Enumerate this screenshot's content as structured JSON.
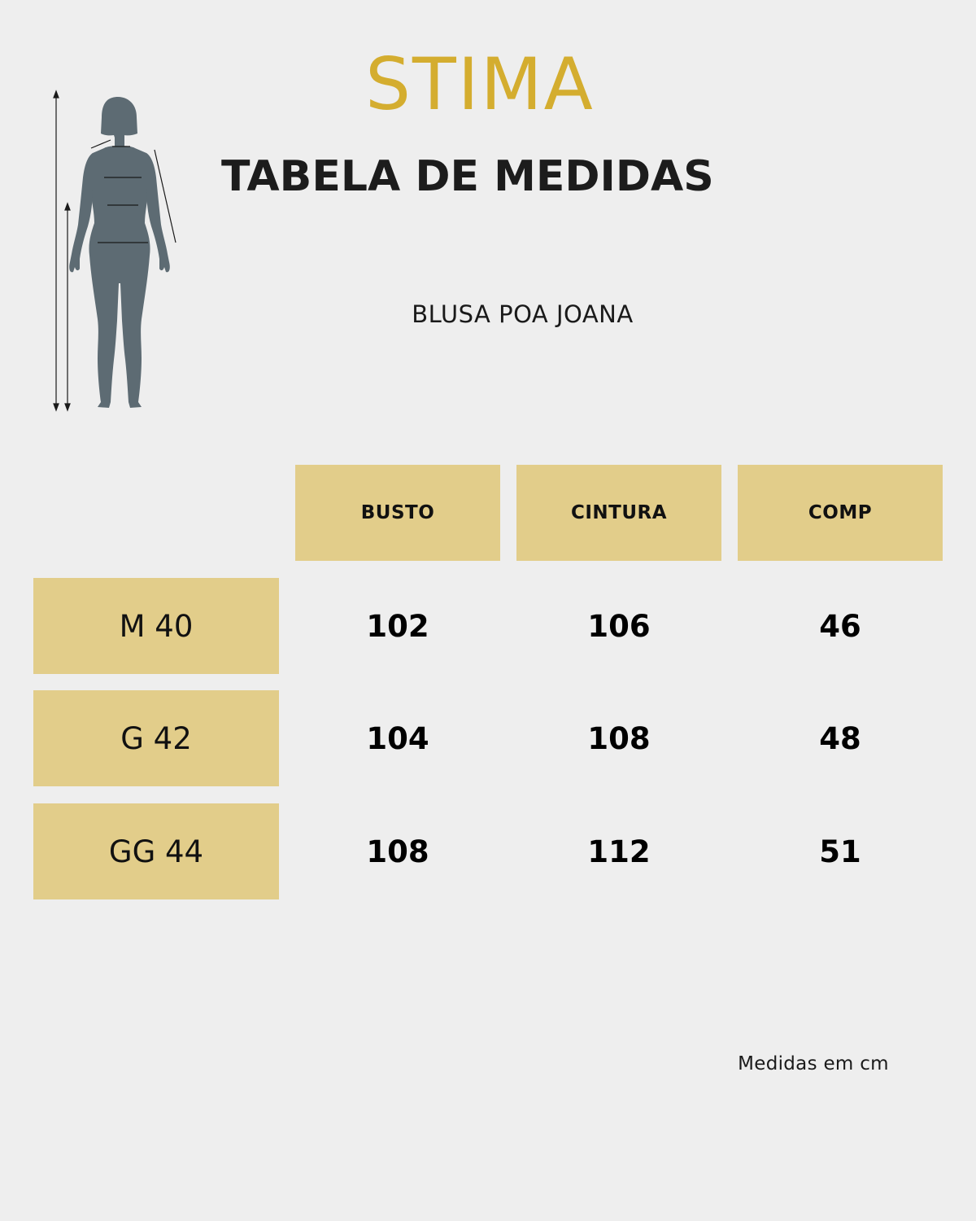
{
  "brand": {
    "logo_text": "STIMA",
    "logo_color": "#d4ad2f"
  },
  "title": "TABELA DE MEDIDAS",
  "product_name": "BLUSA POA JOANA",
  "colors": {
    "background": "#eeeeee",
    "cell_fill": "#e2cd8a",
    "figure": "#5d6b73"
  },
  "table": {
    "headers": [
      "BUSTO",
      "CINTURA",
      "COMP"
    ],
    "rows": [
      {
        "size": "M 40",
        "values": [
          "102",
          "106",
          "46"
        ]
      },
      {
        "size": "G 42",
        "values": [
          "104",
          "108",
          "48"
        ]
      },
      {
        "size": "GG 44",
        "values": [
          "108",
          "112",
          "51"
        ]
      }
    ]
  },
  "footnote": "Medidas em cm"
}
